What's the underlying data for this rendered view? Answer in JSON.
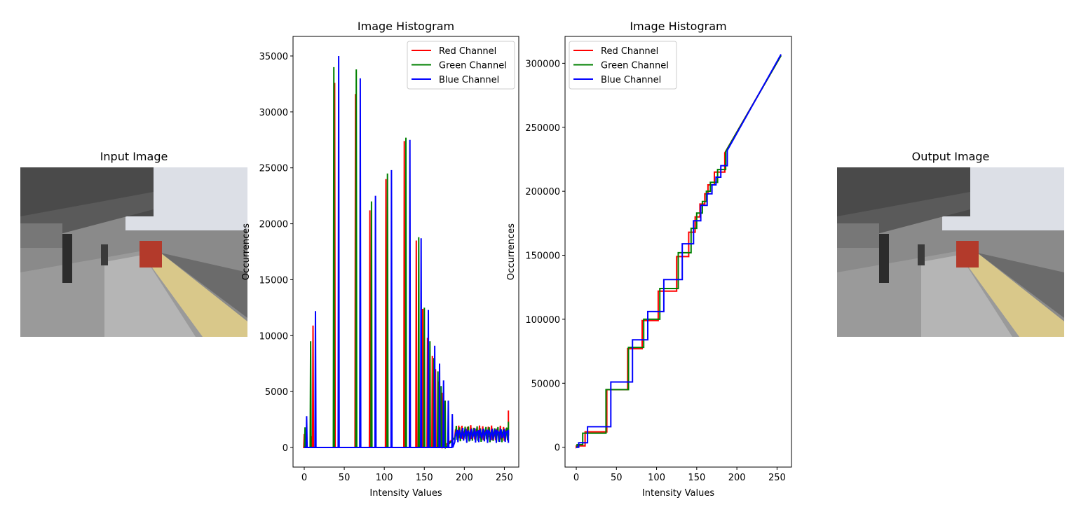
{
  "input_panel": {
    "title": "Input Image"
  },
  "output_panel": {
    "title": "Output Image"
  },
  "colors": {
    "red": "#ff0000",
    "green": "#008000",
    "blue": "#0000ff"
  },
  "chart_data": [
    {
      "type": "line",
      "title": "Image Histogram",
      "xlabel": "Intensity Values",
      "ylabel": "Occurrences",
      "xlim": [
        -14,
        268
      ],
      "ylim": [
        -1750,
        36750
      ],
      "xticks": [
        0,
        50,
        100,
        150,
        200,
        250
      ],
      "yticks": [
        0,
        5000,
        10000,
        15000,
        20000,
        25000,
        30000,
        35000
      ],
      "grid": false,
      "legend": "top-right",
      "spikes": {
        "red": [
          [
            0,
            1200
          ],
          [
            9,
            1000
          ],
          [
            11,
            10900
          ],
          [
            38,
            32600
          ],
          [
            64,
            31600
          ],
          [
            82,
            21200
          ],
          [
            102,
            24000
          ],
          [
            125,
            27400
          ],
          [
            140,
            18500
          ],
          [
            148,
            12400
          ],
          [
            154,
            9800
          ],
          [
            160,
            8200
          ],
          [
            164,
            7000
          ],
          [
            168,
            5900
          ],
          [
            172,
            4900
          ]
        ],
        "green": [
          [
            1,
            1800
          ],
          [
            8,
            9500
          ],
          [
            37,
            34000
          ],
          [
            65,
            33800
          ],
          [
            84,
            22000
          ],
          [
            104,
            24500
          ],
          [
            127,
            27700
          ],
          [
            143,
            18800
          ],
          [
            150,
            12500
          ],
          [
            157,
            9500
          ],
          [
            162,
            8000
          ],
          [
            167,
            6800
          ],
          [
            171,
            5500
          ],
          [
            176,
            4200
          ]
        ],
        "blue": [
          [
            3,
            2800
          ],
          [
            14,
            12200
          ],
          [
            43,
            35000
          ],
          [
            70,
            33000
          ],
          [
            89,
            22500
          ],
          [
            109,
            24800
          ],
          [
            132,
            27500
          ],
          [
            146,
            18700
          ],
          [
            155,
            12300
          ],
          [
            163,
            9100
          ],
          [
            169,
            7500
          ],
          [
            174,
            6000
          ],
          [
            180,
            4200
          ],
          [
            185,
            3000
          ]
        ]
      },
      "series": [
        {
          "name": "Red Channel",
          "color": "#ff0000"
        },
        {
          "name": "Green Channel",
          "color": "#008000"
        },
        {
          "name": "Blue Channel",
          "color": "#0000ff"
        }
      ]
    },
    {
      "type": "line",
      "title": "Image Histogram",
      "xlabel": "Intensity Values",
      "ylabel": "Occurrences",
      "xlim": [
        -14,
        268
      ],
      "ylim": [
        -15500,
        321000
      ],
      "xticks": [
        0,
        50,
        100,
        150,
        200,
        250
      ],
      "yticks": [
        0,
        50000,
        100000,
        150000,
        200000,
        250000,
        300000
      ],
      "grid": false,
      "legend": "top-left",
      "series": [
        {
          "name": "Red Channel",
          "color": "#ff0000",
          "steps": [
            [
              0,
              1000
            ],
            [
              11,
              12000
            ],
            [
              38,
              45000
            ],
            [
              64,
              77000
            ],
            [
              82,
              99000
            ],
            [
              102,
              122000
            ],
            [
              125,
              149000
            ],
            [
              140,
              168000
            ],
            [
              148,
              180000
            ],
            [
              154,
              190000
            ],
            [
              160,
              198000
            ],
            [
              164,
              205000
            ],
            [
              172,
              215000
            ],
            [
              185,
              230000
            ],
            [
              255,
              306000
            ]
          ]
        },
        {
          "name": "Green Channel",
          "color": "#008000",
          "steps": [
            [
              1,
              2000
            ],
            [
              8,
              11000
            ],
            [
              37,
              45000
            ],
            [
              65,
              78000
            ],
            [
              84,
              100000
            ],
            [
              104,
              124000
            ],
            [
              127,
              152000
            ],
            [
              143,
              171000
            ],
            [
              150,
              183000
            ],
            [
              157,
              192000
            ],
            [
              162,
              200000
            ],
            [
              167,
              207000
            ],
            [
              176,
              217000
            ],
            [
              186,
              231000
            ],
            [
              255,
              306000
            ]
          ]
        },
        {
          "name": "Blue Channel",
          "color": "#0000ff",
          "steps": [
            [
              3,
              3500
            ],
            [
              14,
              16000
            ],
            [
              43,
              51000
            ],
            [
              70,
              84000
            ],
            [
              89,
              106000
            ],
            [
              109,
              131000
            ],
            [
              132,
              159000
            ],
            [
              146,
              177000
            ],
            [
              155,
              189000
            ],
            [
              163,
              198000
            ],
            [
              169,
              205000
            ],
            [
              174,
              211000
            ],
            [
              180,
              220000
            ],
            [
              188,
              232000
            ],
            [
              255,
              307000
            ]
          ]
        }
      ]
    }
  ]
}
